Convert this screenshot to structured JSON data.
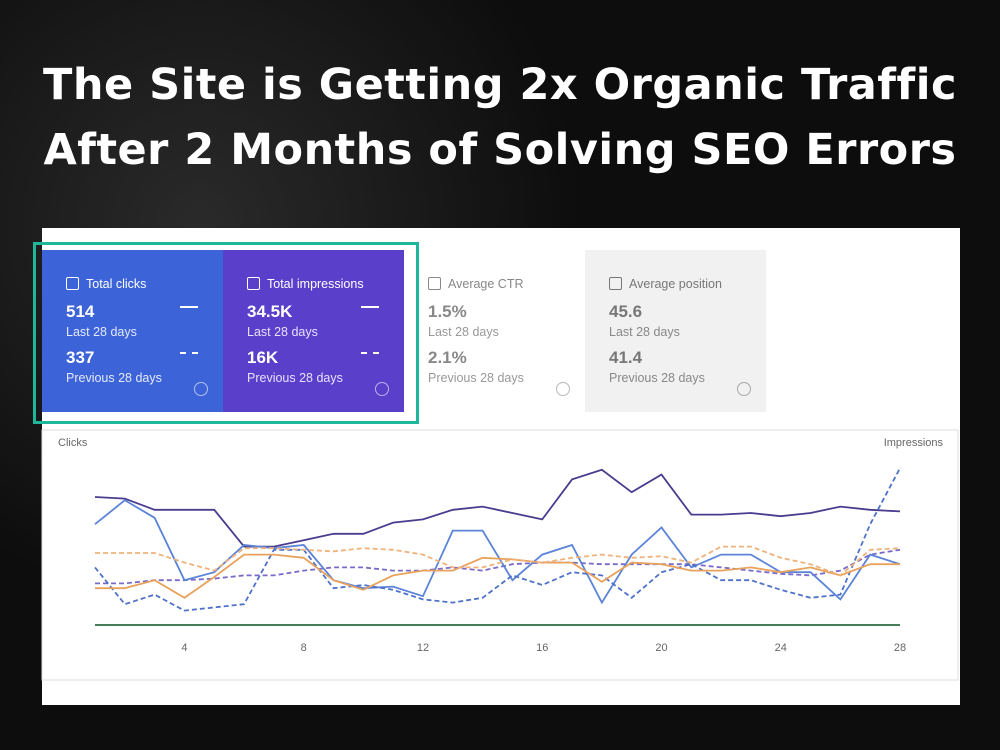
{
  "header": {
    "title_lines": [
      "The Site is Getting 2x Organic Traffic",
      "After 2 Months of Solving SEO Errors"
    ]
  },
  "cards": [
    {
      "label": "Total clicks",
      "value": "514",
      "period": "Last 28 days",
      "previous_value": "337",
      "previous_period": "Previous 28 days"
    },
    {
      "label": "Total impressions",
      "value": "34.5K",
      "period": "Last 28 days",
      "previous_value": "16K",
      "previous_period": "Previous 28 days"
    },
    {
      "label": "Average CTR",
      "value": "1.5%",
      "period": "Last 28 days",
      "previous_value": "2.1%",
      "previous_period": "Previous 28 days"
    },
    {
      "label": "Average position",
      "value": "45.6",
      "period": "Last 28 days",
      "previous_value": "41.4",
      "previous_period": "Previous 28 days"
    }
  ],
  "chart_data": {
    "type": "line",
    "y_label": "Clicks",
    "y2_label": "Impressions",
    "x": [
      1,
      2,
      3,
      4,
      5,
      6,
      7,
      8,
      9,
      10,
      11,
      12,
      13,
      14,
      15,
      16,
      17,
      18,
      19,
      20,
      21,
      22,
      23,
      24,
      25,
      26,
      27,
      28
    ],
    "xlim": [
      1,
      28
    ],
    "xticks": [
      4,
      8,
      12,
      16,
      20,
      24,
      28
    ],
    "ylim": [
      0,
      100
    ],
    "y2lim": [
      0,
      100
    ],
    "series": [
      {
        "color": "#4a3d8f",
        "axis": "y2",
        "dashed": false,
        "values": [
          80,
          79,
          72,
          72,
          72,
          49,
          49,
          53,
          57,
          57,
          64,
          66,
          72,
          74,
          70,
          66,
          91,
          97,
          83,
          94,
          69,
          69,
          70,
          68,
          70,
          74,
          72,
          71
        ]
      },
      {
        "color": "#7a6bc9",
        "axis": "y2",
        "dashed": true,
        "values": [
          26,
          26,
          28,
          28,
          29,
          31,
          31,
          34,
          36,
          36,
          34,
          34,
          36,
          34,
          38,
          39,
          39,
          38,
          38,
          38,
          38,
          36,
          34,
          32,
          31,
          34,
          44,
          47
        ]
      },
      {
        "color": "#5b84d8",
        "dashed": false,
        "values": [
          63,
          78,
          67,
          28,
          33,
          50,
          48,
          50,
          28,
          23,
          24,
          18,
          59,
          59,
          28,
          44,
          50,
          14,
          44,
          61,
          36,
          44,
          44,
          33,
          33,
          16,
          44,
          38
        ]
      },
      {
        "color": "#4f72c8",
        "dashed": true,
        "values": [
          36,
          13,
          19,
          9,
          11,
          13,
          47,
          47,
          23,
          25,
          22,
          16,
          14,
          17,
          31,
          25,
          33,
          31,
          17,
          33,
          38,
          28,
          28,
          22,
          17,
          19,
          63,
          98
        ]
      },
      {
        "color": "#e8a25c",
        "dashed": false,
        "values": [
          23,
          23,
          28,
          17,
          30,
          44,
          44,
          42,
          28,
          22,
          31,
          34,
          34,
          42,
          41,
          39,
          39,
          27,
          39,
          38,
          34,
          34,
          36,
          33,
          36,
          31,
          38,
          38
        ]
      },
      {
        "color": "#efb27a",
        "dashed": true,
        "values": [
          45,
          45,
          45,
          39,
          34,
          48,
          48,
          47,
          46,
          48,
          47,
          44,
          36,
          36,
          41,
          39,
          42,
          44,
          42,
          43,
          39,
          49,
          49,
          42,
          38,
          31,
          47,
          48
        ]
      },
      {
        "color": "#2e6b3f",
        "dashed": false,
        "values": [
          0,
          0,
          0,
          0,
          0,
          0,
          0,
          0,
          0,
          0,
          0,
          0,
          0,
          0,
          0,
          0,
          0,
          0,
          0,
          0,
          0,
          0,
          0,
          0,
          0,
          0,
          0,
          0
        ]
      }
    ]
  }
}
